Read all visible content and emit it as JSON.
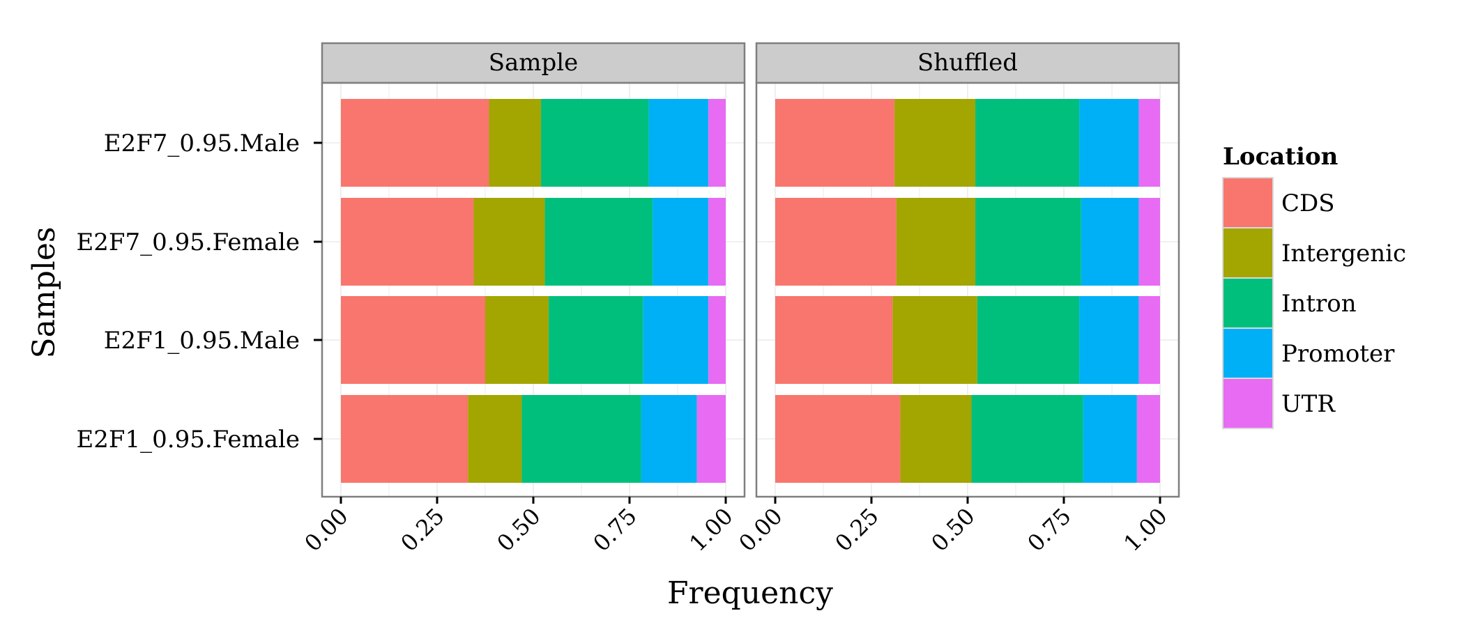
{
  "chart_data": {
    "type": "bar",
    "orientation": "horizontal",
    "stacked": true,
    "xlabel": "Frequency",
    "ylabel": "Samples",
    "xlim": [
      0,
      1
    ],
    "x_ticks": [
      "0.00",
      "0.25",
      "0.50",
      "0.75",
      "1.00"
    ],
    "grid": true,
    "legend": {
      "title": "Location",
      "placement": "right",
      "entries": [
        "CDS",
        "Intergenic",
        "Intron",
        "Promoter",
        "UTR"
      ]
    },
    "colors": {
      "CDS": "#F8766D",
      "Intergenic": "#A3A500",
      "Intron": "#00BF7D",
      "Promoter": "#00B0F6",
      "UTR": "#E76BF3"
    },
    "categories": [
      "E2F7_0.95.Male",
      "E2F7_0.95.Female",
      "E2F1_0.95.Male",
      "E2F1_0.95.Female"
    ],
    "panels": [
      {
        "name": "Sample",
        "series": [
          {
            "name": "CDS",
            "values": [
              0.385,
              0.345,
              0.375,
              0.33
            ]
          },
          {
            "name": "Intergenic",
            "values": [
              0.135,
              0.185,
              0.165,
              0.14
            ]
          },
          {
            "name": "Intron",
            "values": [
              0.28,
              0.28,
              0.245,
              0.31
            ]
          },
          {
            "name": "Promoter",
            "values": [
              0.155,
              0.145,
              0.17,
              0.145
            ]
          },
          {
            "name": "UTR",
            "values": [
              0.045,
              0.045,
              0.045,
              0.075
            ]
          }
        ]
      },
      {
        "name": "Shuffled",
        "series": [
          {
            "name": "CDS",
            "values": [
              0.31,
              0.315,
              0.305,
              0.325
            ]
          },
          {
            "name": "Intergenic",
            "values": [
              0.21,
              0.205,
              0.22,
              0.185
            ]
          },
          {
            "name": "Intron",
            "values": [
              0.27,
              0.275,
              0.265,
              0.29
            ]
          },
          {
            "name": "Promoter",
            "values": [
              0.155,
              0.15,
              0.155,
              0.14
            ]
          },
          {
            "name": "UTR",
            "values": [
              0.055,
              0.055,
              0.055,
              0.06
            ]
          }
        ]
      }
    ]
  }
}
